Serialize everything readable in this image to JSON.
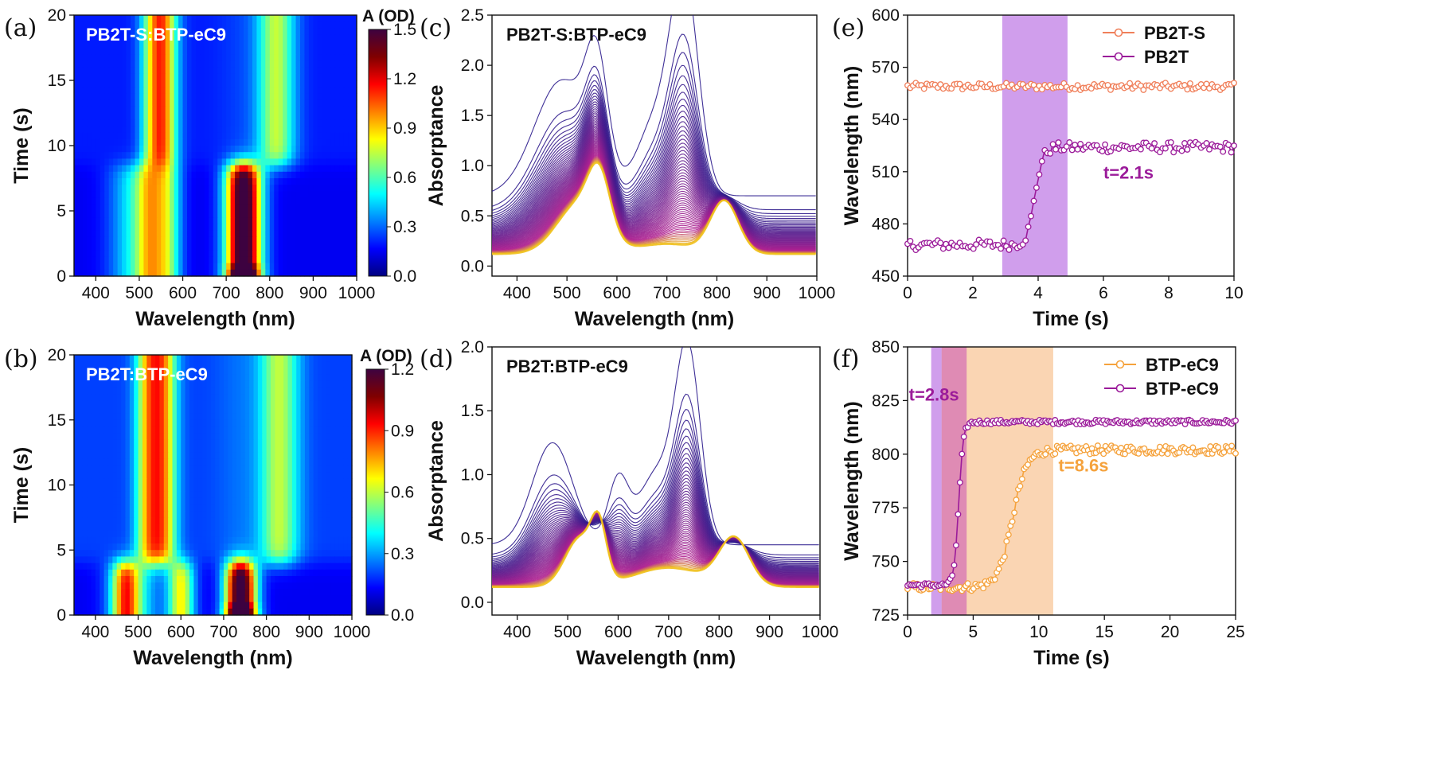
{
  "colors": {
    "spectrum_start": "#2a1a8c",
    "spectrum_end": "#f0c01a",
    "pb2ts": "#f07f5a",
    "pb2t": "#9b1b9a",
    "btp_orange": "#f5a23c",
    "btp_purple": "#9b1b9a",
    "shade_purple": "#c07ee6",
    "shade_orange": "#f8c79a",
    "shade_pink": "#d97bb5",
    "colormap": [
      "#000080",
      "#0000ff",
      "#0080ff",
      "#00ffff",
      "#80ff80",
      "#ffff00",
      "#ff8000",
      "#ff0000",
      "#800000",
      "#3d0240"
    ]
  },
  "chart_data": [
    {
      "id": "a",
      "panel_label": "(a)",
      "type": "heatmap",
      "title": "PB2T-S:BTP-eC9",
      "xlabel": "Wavelength (nm)",
      "ylabel": "Time (s)",
      "xlim": [
        350,
        1000
      ],
      "ylim": [
        0,
        20
      ],
      "xticks": [
        400,
        500,
        600,
        700,
        800,
        900,
        1000
      ],
      "yticks": [
        0,
        5,
        10,
        15,
        20
      ],
      "colorbar": {
        "label": "A (OD)",
        "range": [
          0,
          1.5
        ],
        "ticks": [
          "0.0",
          "0.3",
          "0.6",
          "0.9",
          "1.2",
          "1.5"
        ]
      },
      "transition_time_s": 8.5,
      "before": {
        "polymer_peaks_nm": [
          525,
          565
        ],
        "polymer_amp": 0.5,
        "acceptor_peak_nm": 740,
        "acceptor_amp": 1.5,
        "acceptor_width_nm": 28,
        "extra_peak_nm": 490,
        "extra_amp": 0.35,
        "baseline": 0.15
      },
      "after": {
        "polymer_peaks_nm": [
          535,
          560
        ],
        "polymer_amp": 0.55,
        "acceptor_peak_nm": 815,
        "acceptor_amp": 0.55,
        "acceptor_width_nm": 30,
        "extra_peak_nm": 740,
        "extra_amp": 0.05,
        "baseline": 0.2
      }
    },
    {
      "id": "b",
      "panel_label": "(b)",
      "type": "heatmap",
      "title": "PB2T:BTP-eC9",
      "xlabel": "Wavelength (nm)",
      "ylabel": "Time (s)",
      "xlim": [
        350,
        1000
      ],
      "ylim": [
        0,
        20
      ],
      "xticks": [
        400,
        500,
        600,
        700,
        800,
        900,
        1000
      ],
      "yticks": [
        0,
        5,
        10,
        15,
        20
      ],
      "colorbar": {
        "label": "A (OD)",
        "range": [
          0,
          1.2
        ],
        "ticks": [
          "0.0",
          "0.3",
          "0.6",
          "0.9",
          "1.2"
        ]
      },
      "transition_time_s": 4.0,
      "before": {
        "polymer_peaks_nm": [
          470,
          600
        ],
        "polymer_amp": 0.55,
        "acceptor_peak_nm": 740,
        "acceptor_amp": 1.2,
        "acceptor_width_nm": 25,
        "extra_peak_nm": 490,
        "extra_amp": 0.3,
        "baseline": 0.12
      },
      "after": {
        "polymer_peaks_nm": [
          525,
          560
        ],
        "polymer_amp": 0.5,
        "acceptor_peak_nm": 830,
        "acceptor_amp": 0.4,
        "acceptor_width_nm": 32,
        "extra_peak_nm": 740,
        "extra_amp": 0.05,
        "baseline": 0.2
      }
    },
    {
      "id": "c",
      "panel_label": "(c)",
      "type": "line",
      "title": "PB2T-S:BTP-eC9",
      "xlabel": "Wavelength (nm)",
      "ylabel": "Absorptance",
      "xlim": [
        350,
        1000
      ],
      "ylim": [
        -0.1,
        2.5
      ],
      "xticks": [
        400,
        500,
        600,
        700,
        800,
        900,
        1000
      ],
      "yticks": [
        0.0,
        0.5,
        1.0,
        1.5,
        2.0,
        2.5
      ],
      "curve_count": 60,
      "initial": {
        "components": [
          [
            490,
            1.15,
            55
          ],
          [
            560,
            1.05,
            22
          ],
          [
            675,
            0.7,
            35
          ],
          [
            735,
            2.1,
            28
          ]
        ],
        "baseline": 0.7,
        "tail": 0.55
      },
      "final": {
        "components": [
          [
            525,
            0.5,
            45
          ],
          [
            565,
            0.55,
            22
          ],
          [
            815,
            0.52,
            28
          ],
          [
            700,
            0.1,
            60
          ]
        ],
        "baseline": 0.12,
        "tail": 0.1
      }
    },
    {
      "id": "d",
      "panel_label": "(d)",
      "type": "line",
      "title": "PB2T:BTP-eC9",
      "xlabel": "Wavelength (nm)",
      "ylabel": "Absorptance",
      "xlim": [
        350,
        1000
      ],
      "ylim": [
        -0.1,
        2.0
      ],
      "xticks": [
        400,
        500,
        600,
        700,
        800,
        900,
        1000
      ],
      "yticks": [
        0.0,
        0.5,
        1.0,
        1.5,
        2.0
      ],
      "curve_count": 60,
      "initial": {
        "components": [
          [
            470,
            0.8,
            40
          ],
          [
            600,
            0.5,
            20
          ],
          [
            675,
            0.55,
            35
          ],
          [
            738,
            1.5,
            25
          ]
        ],
        "baseline": 0.45,
        "tail": 0.4
      },
      "final": {
        "components": [
          [
            525,
            0.38,
            30
          ],
          [
            562,
            0.38,
            15
          ],
          [
            830,
            0.37,
            30
          ],
          [
            700,
            0.15,
            70
          ]
        ],
        "baseline": 0.12,
        "tail": 0.12
      }
    },
    {
      "id": "e",
      "panel_label": "(e)",
      "type": "scatter",
      "xlabel": "Time (s)",
      "ylabel": "Wavelength (nm)",
      "xlim": [
        0,
        10
      ],
      "ylim": [
        450,
        600
      ],
      "xticks": [
        0,
        2,
        4,
        6,
        8,
        10
      ],
      "yticks": [
        450,
        480,
        510,
        540,
        570,
        600
      ],
      "shaded_regions": [
        {
          "x0": 2.9,
          "x1": 4.9,
          "color_key": "shade_purple"
        }
      ],
      "series": [
        {
          "name": "PB2T-S",
          "color_key": "pb2ts",
          "kind": "flat",
          "level": 559,
          "noise": 2,
          "n": 120,
          "x0": 0,
          "x1": 10
        },
        {
          "name": "PB2T",
          "color_key": "pb2t",
          "kind": "sigmoid",
          "start": 468,
          "end": 524,
          "t0": 3.9,
          "width": 0.12,
          "noise": 3,
          "n": 120,
          "x0": 0,
          "x1": 10
        }
      ],
      "annotations": [
        {
          "text": "t=2.1s",
          "x": 6.0,
          "y": 506,
          "color_key": "pb2t"
        }
      ]
    },
    {
      "id": "f",
      "panel_label": "(f)",
      "type": "scatter",
      "xlabel": "Time (s)",
      "ylabel": "Wavelength (nm)",
      "xlim": [
        0,
        25
      ],
      "ylim": [
        725,
        850
      ],
      "xticks": [
        0,
        5,
        10,
        15,
        20,
        25
      ],
      "yticks": [
        725,
        750,
        775,
        800,
        825,
        850
      ],
      "shaded_regions": [
        {
          "x0": 1.8,
          "x1": 4.5,
          "color_key": "shade_purple"
        },
        {
          "x0": 2.6,
          "x1": 11.1,
          "color_key": "shade_orange"
        },
        {
          "x0": 2.6,
          "x1": 4.5,
          "color_key": "shade_pink"
        }
      ],
      "series": [
        {
          "name": "BTP-eC9",
          "color_key": "btp_orange",
          "kind": "sigmoid",
          "start": 738,
          "end": 802,
          "t0": 8.0,
          "width": 0.55,
          "noise": 2,
          "n": 170,
          "x0": 0,
          "x1": 25
        },
        {
          "name": "BTP-eC9",
          "color_key": "btp_purple",
          "kind": "sigmoid",
          "start": 739,
          "end": 815,
          "t0": 3.9,
          "width": 0.18,
          "noise": 1,
          "n": 170,
          "x0": 0,
          "x1": 25
        }
      ],
      "annotations": [
        {
          "text": "t=2.8s",
          "x": 0.1,
          "y": 825,
          "color_key": "btp_purple"
        },
        {
          "text": "t=8.6s",
          "x": 11.5,
          "y": 792,
          "color_key": "btp_orange"
        }
      ]
    }
  ]
}
